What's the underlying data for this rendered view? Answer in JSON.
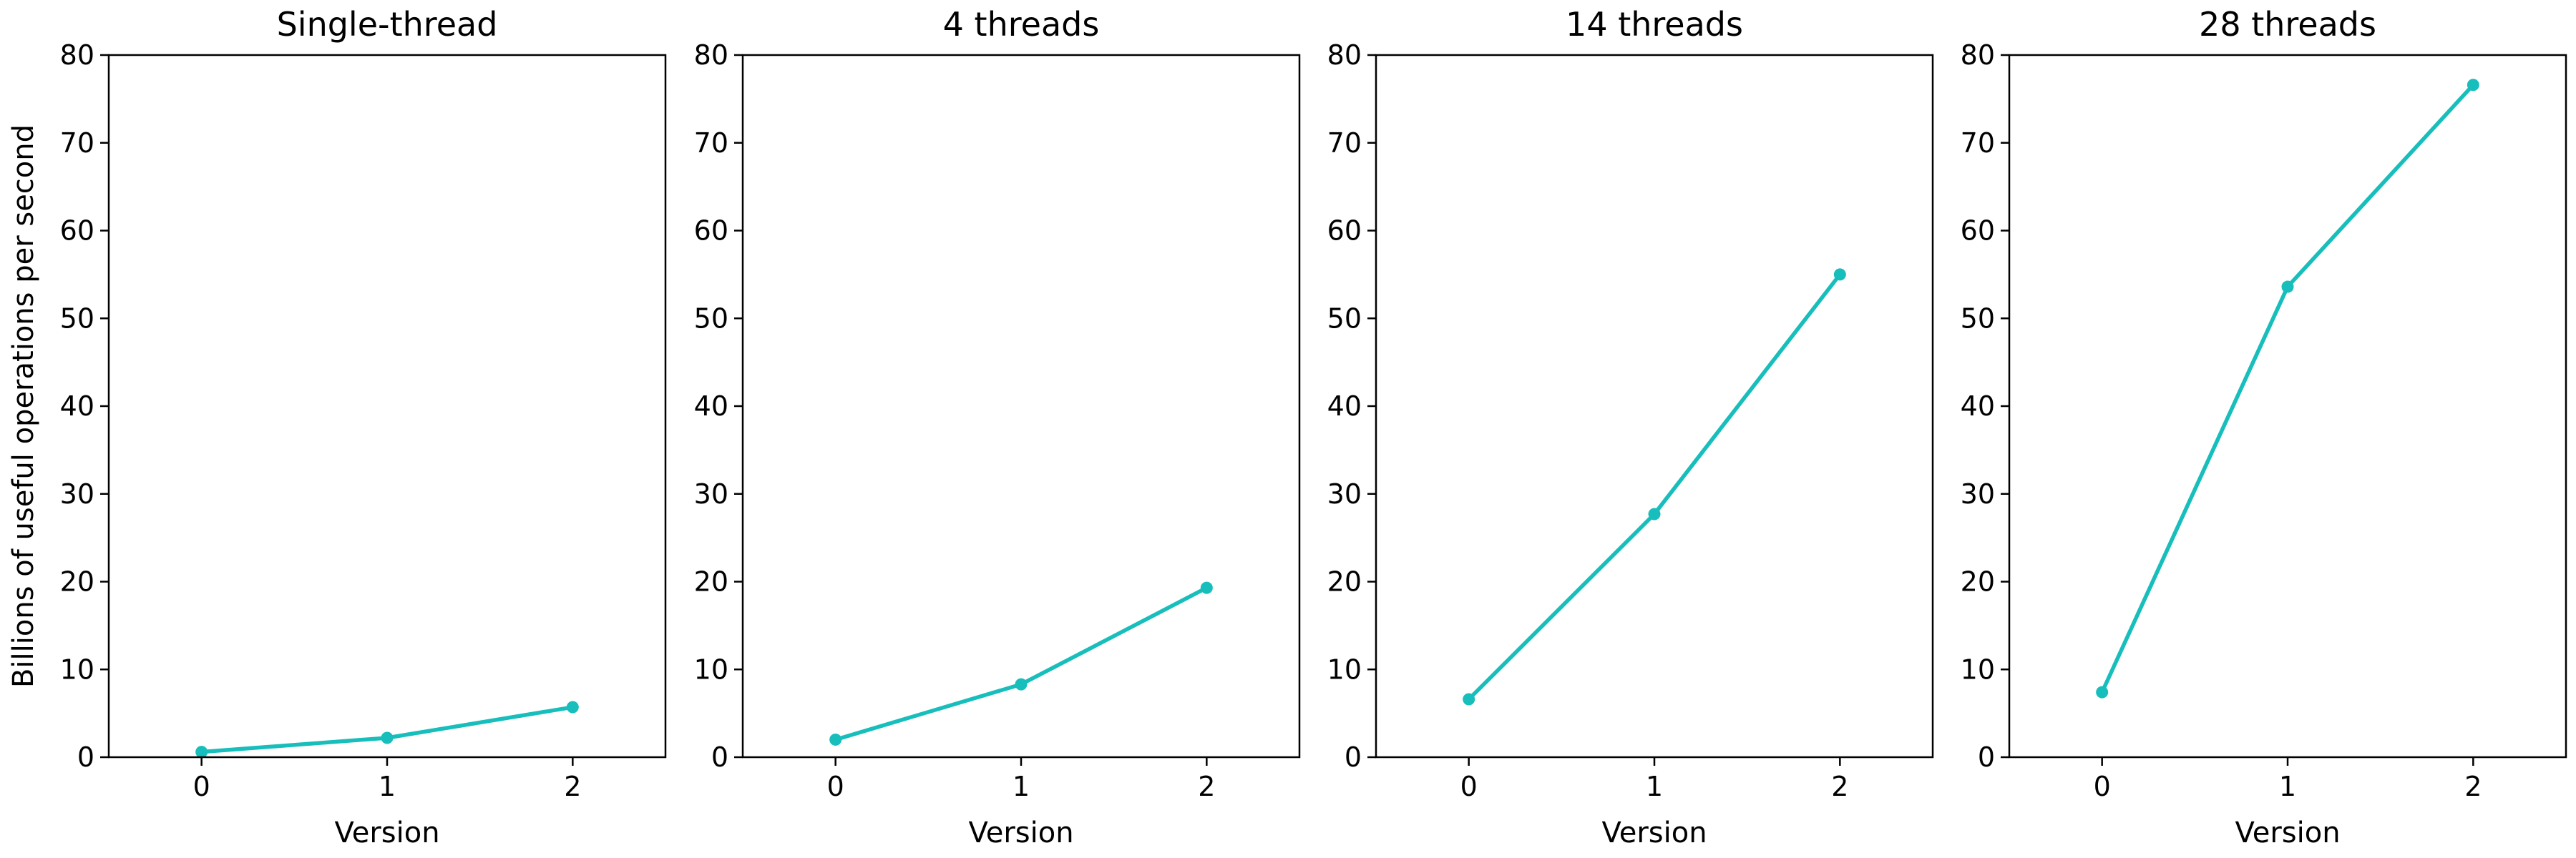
{
  "chart_data": [
    {
      "type": "line",
      "title": "Single-thread",
      "xlabel": "Version",
      "ylabel": "Billions of useful operations per second",
      "x": [
        0,
        1,
        2
      ],
      "xticks": [
        "0",
        "1",
        "2"
      ],
      "xlim": [
        -0.5,
        2.5
      ],
      "ylim": [
        0,
        80
      ],
      "yticks": [
        "0",
        "10",
        "20",
        "30",
        "40",
        "50",
        "60",
        "70",
        "80"
      ],
      "grid": false,
      "series": [
        {
          "color": "#17bebb",
          "values": [
            0.6,
            2.2,
            5.7
          ]
        }
      ]
    },
    {
      "type": "line",
      "title": "4 threads",
      "xlabel": "Version",
      "ylabel": "",
      "x": [
        0,
        1,
        2
      ],
      "xticks": [
        "0",
        "1",
        "2"
      ],
      "xlim": [
        -0.5,
        2.5
      ],
      "ylim": [
        0,
        80
      ],
      "yticks": [
        "0",
        "10",
        "20",
        "30",
        "40",
        "50",
        "60",
        "70",
        "80"
      ],
      "grid": false,
      "series": [
        {
          "color": "#17bebb",
          "values": [
            2.0,
            8.3,
            19.3
          ]
        }
      ]
    },
    {
      "type": "line",
      "title": "14 threads",
      "xlabel": "Version",
      "ylabel": "",
      "x": [
        0,
        1,
        2
      ],
      "xticks": [
        "0",
        "1",
        "2"
      ],
      "xlim": [
        -0.5,
        2.5
      ],
      "ylim": [
        0,
        80
      ],
      "yticks": [
        "0",
        "10",
        "20",
        "30",
        "40",
        "50",
        "60",
        "70",
        "80"
      ],
      "grid": false,
      "series": [
        {
          "color": "#17bebb",
          "values": [
            6.6,
            27.7,
            55.0
          ]
        }
      ]
    },
    {
      "type": "line",
      "title": "28 threads",
      "xlabel": "Version",
      "ylabel": "",
      "x": [
        0,
        1,
        2
      ],
      "xticks": [
        "0",
        "1",
        "2"
      ],
      "xlim": [
        -0.5,
        2.5
      ],
      "ylim": [
        0,
        80
      ],
      "yticks": [
        "0",
        "10",
        "20",
        "30",
        "40",
        "50",
        "60",
        "70",
        "80"
      ],
      "grid": false,
      "series": [
        {
          "color": "#17bebb",
          "values": [
            7.4,
            53.6,
            76.6
          ]
        }
      ]
    }
  ]
}
